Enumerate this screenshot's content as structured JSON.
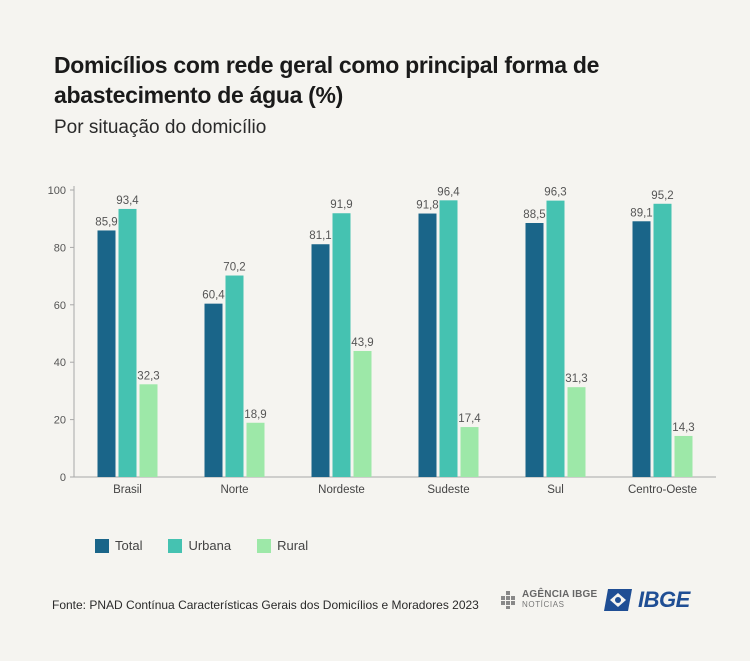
{
  "header": {
    "title": "Domicílios com rede geral como principal forma de abastecimento de água (%)",
    "subtitle": "Por situação do domicílio"
  },
  "colors": {
    "total": "#1a6589",
    "urbana": "#45c2b1",
    "rural": "#9de8a8",
    "axis": "#999999",
    "ibge_blue": "#1f4e94"
  },
  "legend": [
    {
      "label": "Total",
      "color": "#1a6589"
    },
    {
      "label": "Urbana",
      "color": "#45c2b1"
    },
    {
      "label": "Rural",
      "color": "#9de8a8"
    }
  ],
  "footer": {
    "source": "Fonte: PNAD Contínua Características Gerais dos Domicílios e Moradores 2023",
    "agencia_line1": "AGÊNCIA IBGE",
    "agencia_line2": "NOTÍCIAS",
    "ibge_logo": "IBGE"
  },
  "chart_data": {
    "type": "bar",
    "categories": [
      "Brasil",
      "Norte",
      "Nordeste",
      "Sudeste",
      "Sul",
      "Centro-Oeste"
    ],
    "series": [
      {
        "name": "Total",
        "values": [
          85.9,
          60.4,
          81.1,
          91.8,
          88.5,
          89.1
        ],
        "color": "#1a6589"
      },
      {
        "name": "Urbana",
        "values": [
          93.4,
          70.2,
          91.9,
          96.4,
          96.3,
          95.2
        ],
        "color": "#45c2b1"
      },
      {
        "name": "Rural",
        "values": [
          32.3,
          18.9,
          43.9,
          17.4,
          31.3,
          14.3
        ],
        "color": "#9de8a8"
      }
    ],
    "ylim": [
      0,
      100
    ],
    "yticks": [
      0,
      20,
      40,
      60,
      80,
      100
    ],
    "grid": false,
    "decimal_separator": ",",
    "legend_position": "bottom-left"
  }
}
